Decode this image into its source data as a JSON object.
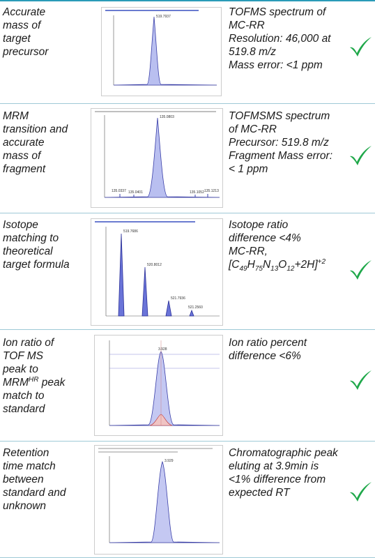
{
  "rows": [
    {
      "criterion": [
        "Accurate",
        "mass of",
        "target",
        "precursor"
      ],
      "result": [
        "TOFMS spectrum of",
        "MC-RR",
        "Resolution: 46,000 at",
        "519.8 m/z",
        "Mass error: <1 ppm"
      ],
      "peaks": [
        "519.7937"
      ]
    },
    {
      "criterion": [
        "MRM",
        "transition and",
        "accurate",
        "mass of",
        "fragment"
      ],
      "result": [
        "TOFMSMS spectrum",
        "of MC-RR",
        "Precursor: 519.8 m/z",
        "Fragment Mass error:",
        "< 1 ppm"
      ],
      "peaks": [
        "135.0803",
        "135.0337",
        "135.0401",
        "135.1052",
        "135.1213"
      ]
    },
    {
      "criterion": [
        "Isotope",
        "matching to",
        "theoretical",
        "target formula"
      ],
      "result": [
        "Isotope ratio",
        "difference <4%",
        "MC-RR,",
        [
          {
            "text": "[C"
          },
          {
            "sub": "49"
          },
          {
            "text": "H"
          },
          {
            "sub": "75"
          },
          {
            "text": "N"
          },
          {
            "sub": "13"
          },
          {
            "text": "O"
          },
          {
            "sub": "12"
          },
          {
            "text": "+2H]"
          },
          {
            "sup": "+2"
          }
        ]
      ],
      "peaks": [
        "519.7686",
        "520.8012",
        "521.7936",
        "521.2560"
      ]
    },
    {
      "criterion": [
        "Ion ratio of",
        "TOF MS",
        "peak to",
        [
          {
            "text": "MRM"
          },
          {
            "sup": "HR"
          },
          {
            "text": " peak"
          }
        ],
        "match to",
        "standard"
      ],
      "result": [
        "Ion ratio percent",
        "difference <6%"
      ],
      "peaks": [
        "3.928"
      ]
    },
    {
      "criterion": [
        "Retention",
        "time match",
        "between",
        "standard and",
        "unknown"
      ],
      "result": [
        "Chromatographic peak",
        "eluting at 3.9min is",
        "<1% difference from",
        "expected RT"
      ],
      "peaks": [
        "3.929"
      ]
    }
  ]
}
